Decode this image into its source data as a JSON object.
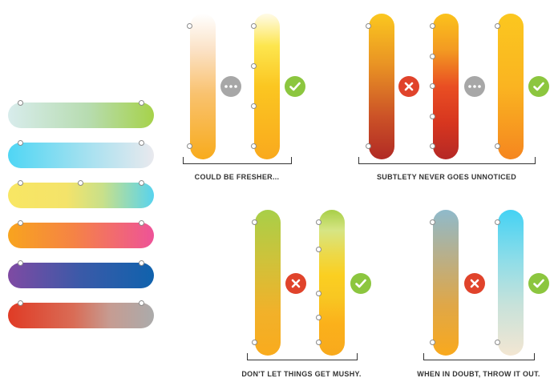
{
  "captions": {
    "group1": "COULD BE FRESHER...",
    "group2": "SUBTLETY NEVER GOES UNNOTICED",
    "group3": "DON'T LET THINGS GET MUSHY.",
    "group4": "WHEN IN DOUBT, THROW IT OUT."
  },
  "colors": {
    "check": "#8cc63f",
    "cross": "#e0432b",
    "neutral": "#a7a7a7"
  },
  "icons": {
    "check": "check-icon",
    "cross": "cross-icon",
    "ellipsis": "ellipsis-icon"
  }
}
